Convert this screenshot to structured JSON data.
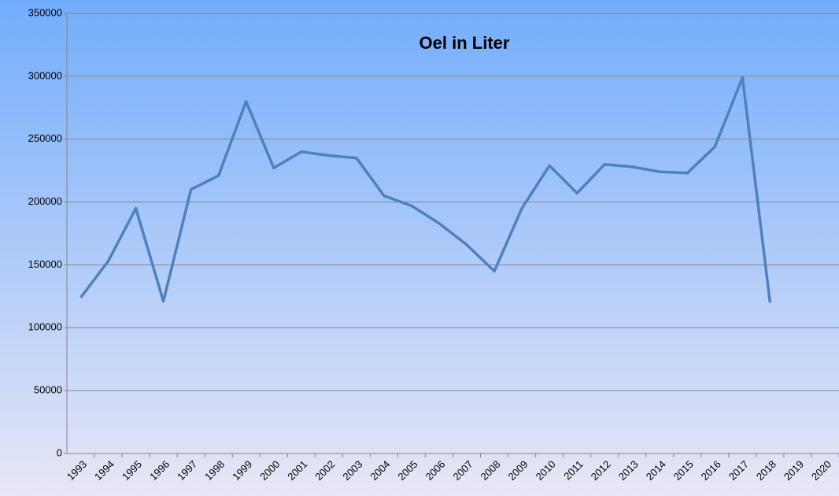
{
  "chart_data": {
    "type": "line",
    "title": "Oel in Liter",
    "categories": [
      "1993",
      "1994",
      "1995",
      "1996",
      "1997",
      "1998",
      "1999",
      "2000",
      "2001",
      "2002",
      "2003",
      "2004",
      "2005",
      "2006",
      "2007",
      "2008",
      "2009",
      "2010",
      "2011",
      "2012",
      "2013",
      "2014",
      "2015",
      "2016",
      "2017",
      "2018",
      "2019",
      "2020"
    ],
    "values": [
      124000,
      153000,
      195000,
      121000,
      210000,
      221000,
      280000,
      227000,
      240000,
      237000,
      235000,
      205000,
      197000,
      183000,
      166000,
      145000,
      195000,
      229000,
      207000,
      230000,
      228000,
      224000,
      223000,
      244000,
      299000,
      120000,
      null,
      null
    ],
    "color": "#4f81bd",
    "ylim": [
      0,
      350000
    ],
    "yticks": [
      0,
      50000,
      100000,
      150000,
      200000,
      250000,
      300000,
      350000
    ],
    "grid": true
  }
}
